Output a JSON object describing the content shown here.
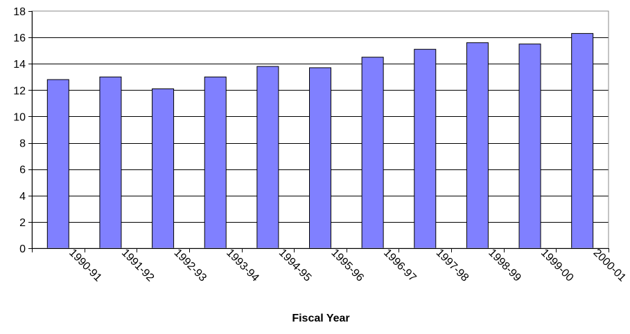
{
  "chart_data": {
    "type": "bar",
    "title": "",
    "xlabel": "Fiscal Year",
    "ylabel": "",
    "categories": [
      "1990-91",
      "1991-92",
      "1992-93",
      "1993-94",
      "1994-95",
      "1995-96",
      "1996-97",
      "1997-98",
      "1998-99",
      "1999-00",
      "2000-01"
    ],
    "values": [
      12.8,
      13.0,
      12.1,
      13.0,
      13.8,
      13.7,
      14.5,
      15.1,
      15.6,
      15.5,
      16.3
    ],
    "ylim": [
      0,
      18
    ],
    "yticks": [
      "0",
      "2",
      "4",
      "6",
      "8",
      "10",
      "12",
      "14",
      "16",
      "18"
    ],
    "grid": true,
    "legend": "none",
    "colors": {
      "bar": "#8080ff",
      "bar_edge": "#000000",
      "grid": "#000000"
    }
  }
}
